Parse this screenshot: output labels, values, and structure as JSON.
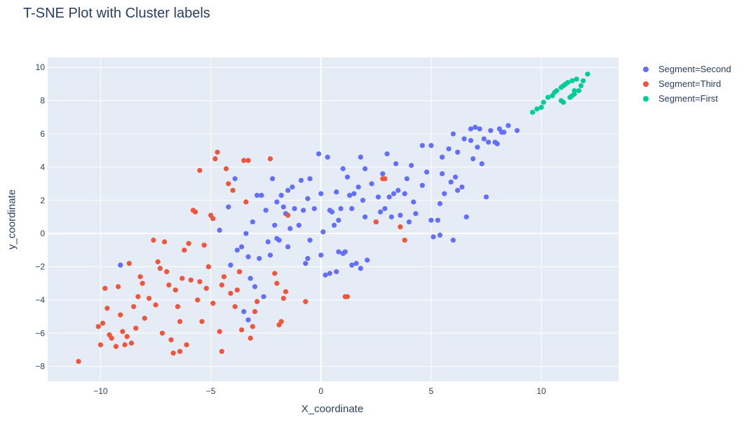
{
  "chart_data": {
    "type": "scatter",
    "title": "T-SNE Plot with Cluster labels",
    "xlabel": "X_coordinate",
    "ylabel": "y_coordinate",
    "xlim": [
      -12.4,
      13.5
    ],
    "ylim": [
      -8.9,
      10.6
    ],
    "xticks": [
      -10,
      -5,
      0,
      5,
      10
    ],
    "yticks": [
      -8,
      -6,
      -4,
      -2,
      0,
      2,
      4,
      6,
      8,
      10
    ],
    "grid": true,
    "legend_position": "top-right, outside plot",
    "background_color": "#e5ecf6",
    "series": [
      {
        "name": "Segment=Second",
        "color": "#636efa",
        "points": [
          [
            -9.1,
            -1.9
          ],
          [
            -4.6,
            0.2
          ],
          [
            -4.2,
            1.6
          ],
          [
            -4.1,
            -1.9
          ],
          [
            -3.9,
            3.3
          ],
          [
            -3.8,
            -1.0
          ],
          [
            -3.7,
            -2.3
          ],
          [
            -3.6,
            -0.8
          ],
          [
            -3.5,
            -4.7
          ],
          [
            -3.4,
            0.0
          ],
          [
            -3.3,
            -1.4
          ],
          [
            -3.3,
            -5.2
          ],
          [
            -3.2,
            -2.7
          ],
          [
            -3.1,
            0.7
          ],
          [
            -3.0,
            -3.2
          ],
          [
            -2.9,
            2.3
          ],
          [
            -2.8,
            -1.5
          ],
          [
            -2.7,
            2.3
          ],
          [
            -2.6,
            -3.8
          ],
          [
            -2.5,
            1.4
          ],
          [
            -2.4,
            -0.5
          ],
          [
            -2.3,
            -1.3
          ],
          [
            -2.2,
            3.3
          ],
          [
            -2.1,
            0.5
          ],
          [
            -2.0,
            1.9
          ],
          [
            -2.0,
            -0.3
          ],
          [
            -1.9,
            -0.4
          ],
          [
            -1.8,
            2.3
          ],
          [
            -1.7,
            1.6
          ],
          [
            -1.6,
            1.2
          ],
          [
            -1.5,
            -0.8
          ],
          [
            -1.5,
            2.6
          ],
          [
            -1.4,
            0.3
          ],
          [
            -1.3,
            2.8
          ],
          [
            -1.2,
            1.5
          ],
          [
            -1.0,
            0.5
          ],
          [
            -0.9,
            3.2
          ],
          [
            -0.8,
            1.4
          ],
          [
            -0.7,
            -1.8
          ],
          [
            -0.6,
            2.1
          ],
          [
            -0.6,
            -1.5
          ],
          [
            -0.5,
            -0.4
          ],
          [
            -0.5,
            3.3
          ],
          [
            -0.3,
            1.5
          ],
          [
            -0.1,
            4.8
          ],
          [
            0.0,
            2.4
          ],
          [
            0.0,
            -1.3
          ],
          [
            0.1,
            0.1
          ],
          [
            0.2,
            -2.5
          ],
          [
            0.3,
            4.6
          ],
          [
            0.4,
            1.4
          ],
          [
            0.4,
            -2.4
          ],
          [
            0.5,
            1.3
          ],
          [
            0.6,
            0.5
          ],
          [
            0.7,
            2.5
          ],
          [
            0.7,
            -2.3
          ],
          [
            0.8,
            0.8
          ],
          [
            0.8,
            -1.1
          ],
          [
            0.9,
            1.5
          ],
          [
            1.0,
            3.9
          ],
          [
            1.0,
            -1.2
          ],
          [
            1.1,
            -1.1
          ],
          [
            1.2,
            3.4
          ],
          [
            1.3,
            2.3
          ],
          [
            1.4,
            1.5
          ],
          [
            1.4,
            -1.9
          ],
          [
            1.5,
            2.4
          ],
          [
            1.6,
            -1.8
          ],
          [
            1.7,
            2.8
          ],
          [
            1.8,
            -2.1
          ],
          [
            1.8,
            4.6
          ],
          [
            1.9,
            2.0
          ],
          [
            2.0,
            3.9
          ],
          [
            2.0,
            1.0
          ],
          [
            2.1,
            -1.6
          ],
          [
            2.3,
            3.0
          ],
          [
            2.5,
            0.7
          ],
          [
            2.6,
            2.2
          ],
          [
            2.7,
            1.3
          ],
          [
            2.8,
            3.6
          ],
          [
            2.9,
            1.5
          ],
          [
            3.0,
            4.8
          ],
          [
            3.1,
            2.2
          ],
          [
            3.2,
            1.0
          ],
          [
            3.3,
            2.4
          ],
          [
            3.4,
            4.2
          ],
          [
            3.5,
            2.6
          ],
          [
            3.6,
            1.1
          ],
          [
            3.8,
            2.4
          ],
          [
            3.9,
            3.3
          ],
          [
            4.0,
            0.7
          ],
          [
            4.1,
            4.1
          ],
          [
            4.2,
            1.9
          ],
          [
            4.3,
            1.2
          ],
          [
            4.6,
            2.9
          ],
          [
            4.6,
            5.3
          ],
          [
            4.8,
            3.7
          ],
          [
            5.0,
            5.3
          ],
          [
            5.0,
            0.8
          ],
          [
            5.1,
            -0.2
          ],
          [
            5.3,
            0.8
          ],
          [
            5.4,
            1.8
          ],
          [
            5.4,
            -0.1
          ],
          [
            5.5,
            4.6
          ],
          [
            5.5,
            3.6
          ],
          [
            5.6,
            2.4
          ],
          [
            5.8,
            5.1
          ],
          [
            5.9,
            3.1
          ],
          [
            6.0,
            6.0
          ],
          [
            6.0,
            -0.4
          ],
          [
            6.1,
            3.4
          ],
          [
            6.2,
            2.6
          ],
          [
            6.2,
            4.9
          ],
          [
            6.4,
            2.8
          ],
          [
            6.5,
            5.7
          ],
          [
            6.6,
            1.0
          ],
          [
            6.8,
            5.6
          ],
          [
            6.8,
            6.3
          ],
          [
            6.9,
            4.5
          ],
          [
            7.0,
            6.4
          ],
          [
            7.1,
            5.2
          ],
          [
            7.2,
            6.3
          ],
          [
            7.3,
            4.2
          ],
          [
            7.4,
            5.7
          ],
          [
            7.5,
            2.2
          ],
          [
            7.6,
            5.5
          ],
          [
            7.7,
            6.2
          ],
          [
            7.9,
            5.5
          ],
          [
            8.0,
            5.4
          ],
          [
            8.1,
            6.3
          ],
          [
            8.2,
            6.1
          ],
          [
            8.3,
            6.1
          ],
          [
            8.5,
            6.5
          ],
          [
            8.9,
            6.2
          ]
        ]
      },
      {
        "name": "Segment=Third",
        "color": "#ef553b",
        "points": [
          [
            -11.0,
            -7.7
          ],
          [
            -10.1,
            -5.6
          ],
          [
            -10.0,
            -6.7
          ],
          [
            -9.9,
            -5.4
          ],
          [
            -9.8,
            -3.3
          ],
          [
            -9.7,
            -4.5
          ],
          [
            -9.6,
            -6.1
          ],
          [
            -9.5,
            -6.3
          ],
          [
            -9.3,
            -6.8
          ],
          [
            -9.2,
            -3.2
          ],
          [
            -9.1,
            -4.9
          ],
          [
            -9.0,
            -5.9
          ],
          [
            -8.9,
            -6.7
          ],
          [
            -8.8,
            -6.2
          ],
          [
            -8.7,
            -1.8
          ],
          [
            -8.6,
            -6.6
          ],
          [
            -8.5,
            -4.4
          ],
          [
            -8.4,
            -5.7
          ],
          [
            -8.3,
            -3.8
          ],
          [
            -8.2,
            -2.6
          ],
          [
            -8.1,
            -3.0
          ],
          [
            -8.0,
            -5.1
          ],
          [
            -7.8,
            -3.9
          ],
          [
            -7.6,
            -0.4
          ],
          [
            -7.5,
            -4.3
          ],
          [
            -7.4,
            -1.7
          ],
          [
            -7.3,
            -2.1
          ],
          [
            -7.2,
            -6.0
          ],
          [
            -7.1,
            -0.5
          ],
          [
            -7.0,
            -2.3
          ],
          [
            -6.9,
            -3.1
          ],
          [
            -6.8,
            -6.4
          ],
          [
            -6.7,
            -7.2
          ],
          [
            -6.6,
            -3.4
          ],
          [
            -6.5,
            -4.4
          ],
          [
            -6.4,
            -5.3
          ],
          [
            -6.4,
            -7.1
          ],
          [
            -6.3,
            -2.7
          ],
          [
            -6.2,
            -1.0
          ],
          [
            -6.1,
            -6.7
          ],
          [
            -6.0,
            -0.6
          ],
          [
            -5.9,
            -2.8
          ],
          [
            -5.8,
            1.4
          ],
          [
            -5.7,
            1.3
          ],
          [
            -5.6,
            -4.0
          ],
          [
            -5.5,
            -2.9
          ],
          [
            -5.5,
            3.8
          ],
          [
            -5.4,
            -5.3
          ],
          [
            -5.3,
            -0.7
          ],
          [
            -5.2,
            -3.3
          ],
          [
            -5.1,
            -2.0
          ],
          [
            -5.0,
            1.1
          ],
          [
            -4.9,
            0.9
          ],
          [
            -4.9,
            -4.2
          ],
          [
            -4.8,
            4.5
          ],
          [
            -4.7,
            4.9
          ],
          [
            -4.6,
            -5.9
          ],
          [
            -4.5,
            -3.1
          ],
          [
            -4.5,
            -7.1
          ],
          [
            -4.4,
            -2.6
          ],
          [
            -4.3,
            3.9
          ],
          [
            -4.2,
            3.0
          ],
          [
            -4.1,
            -3.6
          ],
          [
            -4.0,
            2.6
          ],
          [
            -3.9,
            -4.4
          ],
          [
            -3.8,
            -3.4
          ],
          [
            -3.7,
            -2.3
          ],
          [
            -3.6,
            -5.8
          ],
          [
            -3.5,
            4.4
          ],
          [
            -3.4,
            1.9
          ],
          [
            -3.3,
            4.4
          ],
          [
            -3.2,
            -6.3
          ],
          [
            -3.1,
            -5.6
          ],
          [
            -3.0,
            -4.7
          ],
          [
            -2.9,
            -4.1
          ],
          [
            -2.3,
            4.5
          ],
          [
            -2.1,
            -2.4
          ],
          [
            -2.0,
            -3.0
          ],
          [
            -1.9,
            -5.5
          ],
          [
            -1.8,
            -5.3
          ],
          [
            -1.7,
            -3.9
          ],
          [
            -1.6,
            -3.5
          ],
          [
            -1.5,
            1.1
          ],
          [
            -0.7,
            -4.1
          ],
          [
            1.1,
            -3.8
          ],
          [
            1.2,
            -3.8
          ],
          [
            2.5,
            0.7
          ],
          [
            2.8,
            3.3
          ],
          [
            2.9,
            3.3
          ],
          [
            3.6,
            0.4
          ],
          [
            3.8,
            -0.4
          ]
        ]
      },
      {
        "name": "Segment=First",
        "color": "#00cc96",
        "points": [
          [
            9.6,
            7.3
          ],
          [
            9.8,
            7.5
          ],
          [
            10.0,
            7.6
          ],
          [
            10.1,
            7.9
          ],
          [
            10.3,
            8.2
          ],
          [
            10.5,
            8.3
          ],
          [
            10.6,
            8.5
          ],
          [
            10.7,
            8.6
          ],
          [
            10.9,
            8.8
          ],
          [
            11.0,
            8.9
          ],
          [
            10.9,
            8.0
          ],
          [
            11.0,
            7.9
          ],
          [
            11.1,
            9.0
          ],
          [
            11.2,
            9.1
          ],
          [
            11.3,
            8.2
          ],
          [
            11.4,
            9.2
          ],
          [
            11.5,
            8.4
          ],
          [
            11.6,
            9.3
          ],
          [
            11.7,
            8.6
          ],
          [
            11.8,
            8.9
          ],
          [
            11.9,
            9.2
          ],
          [
            12.1,
            9.6
          ],
          [
            11.5,
            8.6
          ],
          [
            11.4,
            8.3
          ]
        ]
      }
    ]
  }
}
